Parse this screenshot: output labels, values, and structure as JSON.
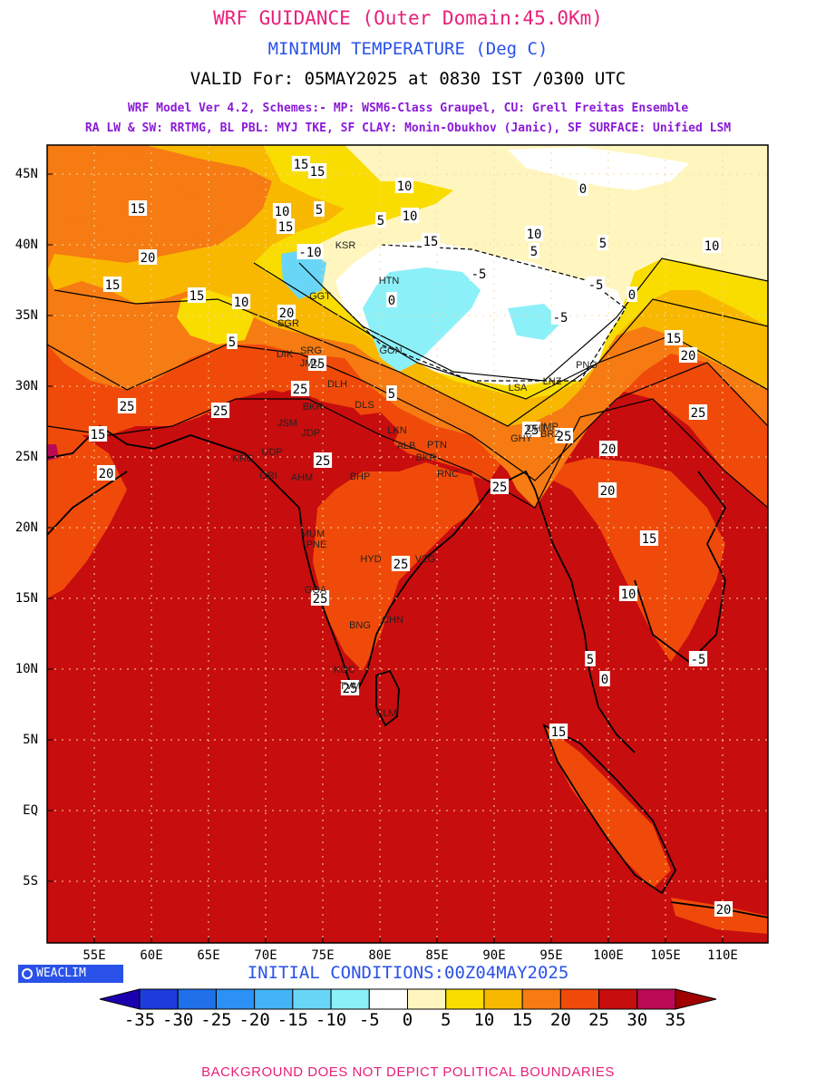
{
  "header": {
    "title": "WRF GUIDANCE (Outer Domain:45.0Km)",
    "variable": "MINIMUM TEMPERATURE (Deg C)",
    "valid": "VALID For: 05MAY2025 at 0830 IST /0300 UTC",
    "model_line1": "WRF Model Ver 4.2, Schemes:- MP: WSM6-Class Graupel, CU: Grell Freitas Ensemble",
    "model_line2": "RA LW & SW: RRTMG, BL PBL: MYJ TKE, SF CLAY: Monin-Obukhov (Janic), SF SURFACE: Unified LSM"
  },
  "map": {
    "lat_labels": [
      "45N",
      "40N",
      "35N",
      "30N",
      "25N",
      "20N",
      "15N",
      "10N",
      "5N",
      "EQ",
      "5S"
    ],
    "lon_labels": [
      "55E",
      "60E",
      "65E",
      "70E",
      "75E",
      "80E",
      "85E",
      "90E",
      "95E",
      "100E",
      "105E",
      "110E"
    ],
    "contour_labels": [
      "15",
      "15",
      "10",
      "5",
      "5",
      "10",
      "10",
      "15",
      "15",
      "15",
      "20",
      "15",
      "15",
      "10",
      "5",
      "-10",
      "0",
      "-5",
      "-5",
      "-5",
      "0",
      "10",
      "5",
      "0",
      "5",
      "10",
      "15",
      "20",
      "25",
      "25",
      "15",
      "20",
      "25",
      "25",
      "20",
      "25",
      "25",
      "25",
      "20",
      "20",
      "15",
      "10",
      "5",
      "0",
      "-5",
      "15",
      "20",
      "25",
      "25",
      "25",
      "25",
      "25",
      "5"
    ],
    "cities": [
      "KSR",
      "HTN",
      "GGT",
      "SGR",
      "DIK",
      "SRG",
      "JMU",
      "DLH",
      "DLS",
      "BKR",
      "JSM",
      "JDP",
      "LKN",
      "ALB",
      "PTN",
      "BKR",
      "UDP",
      "AHM",
      "BHP",
      "RNC",
      "KRC",
      "GHY",
      "IMP",
      "ORI",
      "VZG",
      "HYD",
      "PNE",
      "MUM",
      "GOA",
      "CHN",
      "BNG",
      "KOC",
      "TVM",
      "CLM",
      "GON",
      "LSA",
      "LNZ",
      "PNG",
      "CHT",
      "BRZ"
    ]
  },
  "branding": {
    "logo_text": "WEACLIM",
    "logo_icon": "copyright-circle-icon"
  },
  "initial_conditions": "INITIAL CONDITIONS:00Z04MAY2025",
  "colorbar": {
    "ticks": [
      "-35",
      "-30",
      "-25",
      "-20",
      "-15",
      "-10",
      "-5",
      "0",
      "5",
      "10",
      "15",
      "20",
      "25",
      "30",
      "35"
    ],
    "colors": [
      "#1b00b0",
      "#1c3cdb",
      "#2070ea",
      "#2b91f4",
      "#44b4f6",
      "#6ad6f7",
      "#8cf0f8",
      "#ffffff",
      "#fff6bf",
      "#f9dd00",
      "#f8b800",
      "#f67b12",
      "#f04a0a",
      "#c70d0d",
      "#bc0a55",
      "#a00000"
    ]
  },
  "footer": "BACKGROUND DOES NOT DEPICT POLITICAL BOUNDARIES"
}
